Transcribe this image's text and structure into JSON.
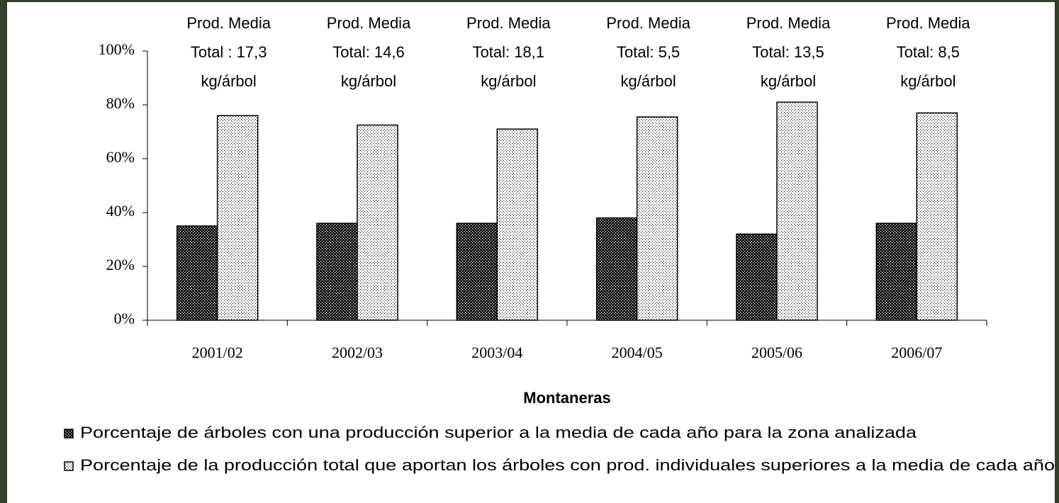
{
  "chart_data": {
    "type": "bar",
    "x_label": "Montaneras",
    "categories": [
      "2001/02",
      "2002/03",
      "2003/04",
      "2004/05",
      "2005/06",
      "2006/07"
    ],
    "annotations": [
      [
        "Prod. Media",
        "Total : 17,3",
        "kg/árbol"
      ],
      [
        "Prod. Media",
        "Total: 14,6",
        "kg/árbol"
      ],
      [
        "Prod. Media",
        "Total: 18,1",
        "kg/árbol"
      ],
      [
        "Prod. Media",
        "Total: 5,5",
        "kg/árbol"
      ],
      [
        "Prod. Media",
        "Total: 13,5",
        "kg/árbol"
      ],
      [
        "Prod. Media",
        "Total: 8,5",
        "kg/árbol"
      ]
    ],
    "series": [
      {
        "name": "Porcentaje de árboles con una producción superior a la  media de cada año para  la zona analizada",
        "color": "dark-dotted",
        "values": [
          35,
          36,
          36,
          38,
          32,
          36
        ]
      },
      {
        "name": "Porcentaje de la producción total que aportan los árboles con prod. individuales superiores a la media de cada año",
        "color": "light-dotted",
        "values": [
          76,
          72.5,
          71,
          75.5,
          81,
          77
        ]
      }
    ],
    "ylim": [
      0,
      100
    ],
    "yticks": [
      {
        "value": 0,
        "label": "0%"
      },
      {
        "value": 20,
        "label": "20%"
      },
      {
        "value": 40,
        "label": "40%"
      },
      {
        "value": 60,
        "label": "60%"
      },
      {
        "value": 80,
        "label": "80%"
      },
      {
        "value": 100,
        "label": "100%"
      }
    ],
    "grid": false,
    "legend": "bottom"
  }
}
